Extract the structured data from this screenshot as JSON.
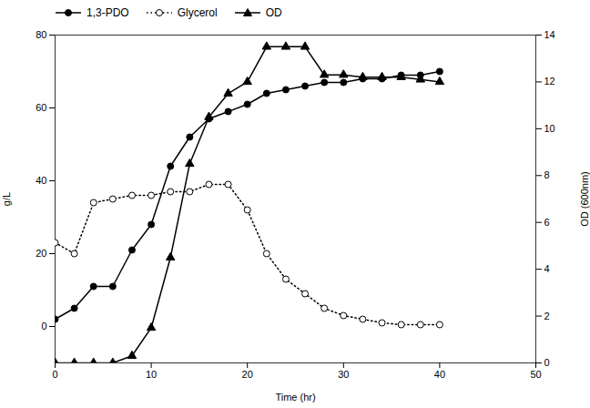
{
  "chart_data": {
    "type": "line",
    "x": [
      0,
      2,
      4,
      6,
      8,
      10,
      12,
      14,
      16,
      18,
      20,
      22,
      24,
      26,
      28,
      30,
      32,
      34,
      36,
      38,
      40
    ],
    "series": [
      {
        "name": "1,3-PDO",
        "color": "#000000",
        "marker": "circle",
        "line_style": "solid",
        "axis": "y",
        "values": [
          2,
          5,
          11,
          11,
          21,
          28,
          44,
          52,
          57,
          59,
          61,
          64,
          65,
          66,
          67,
          67,
          68,
          68,
          69,
          69,
          70
        ]
      },
      {
        "name": "Glycerol",
        "color": "#000000",
        "marker": "open-circle",
        "line_style": "dotted",
        "axis": "y",
        "values": [
          23,
          20,
          34,
          35,
          36,
          36,
          37,
          37,
          39,
          39,
          32,
          20,
          13,
          9,
          5,
          3,
          2,
          1,
          0.5,
          0.5,
          0.5
        ]
      },
      {
        "name": "OD",
        "color": "#000000",
        "marker": "triangle",
        "line_style": "solid",
        "axis": "y2",
        "values": [
          0,
          0,
          0,
          0,
          0.3,
          1.5,
          4.5,
          8.5,
          10.5,
          11.5,
          12.0,
          13.5,
          13.5,
          13.5,
          12.3,
          12.3,
          12.2,
          12.2,
          12.2,
          12.1,
          12.0
        ]
      }
    ],
    "xlabel": "Time (hr)",
    "ylabel": "g/L",
    "y2label": "OD (600nm)",
    "xlim": [
      0,
      50
    ],
    "xticks": [
      0,
      10,
      20,
      30,
      40,
      50
    ],
    "ylim": [
      -10,
      80
    ],
    "yticks": [
      0,
      20,
      40,
      60,
      80
    ],
    "y2lim": [
      0,
      14
    ],
    "y2ticks": [
      0,
      2,
      4,
      6,
      8,
      10,
      12,
      14
    ],
    "legend": "upper left",
    "grid": false
  }
}
